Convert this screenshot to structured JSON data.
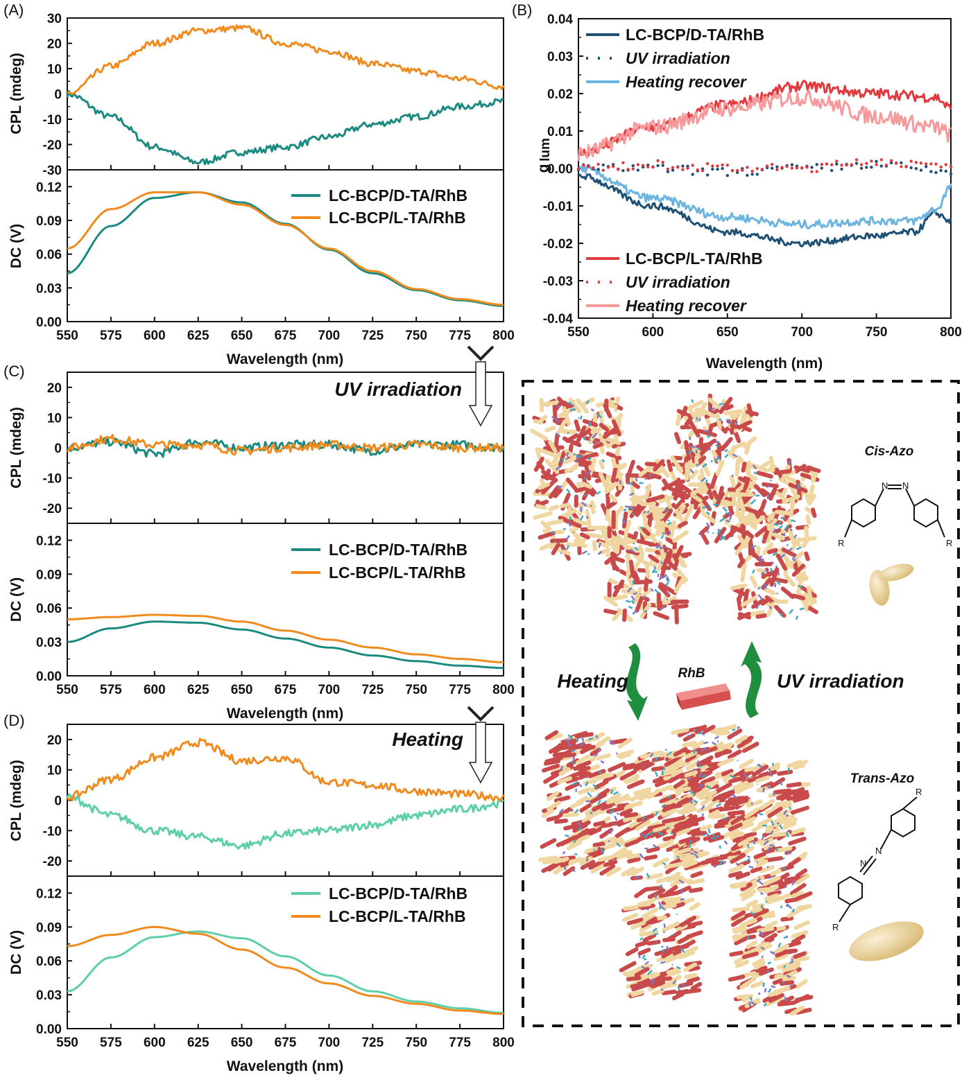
{
  "panel_labels": [
    "(A)",
    "(B)",
    "(C)",
    "(D)"
  ],
  "colors": {
    "d_ta": "#1a8a80",
    "l_ta": "#f08a1c",
    "d_ta_heat": "#5ccfa8",
    "b_dark_blue": "#1e4f75",
    "b_light_blue": "#6cb4e0",
    "b_red": "#e03a3e",
    "b_pink": "#f7999a",
    "azo_bead": "#f0d6a0",
    "rhb_brick": "#d65050"
  },
  "legend": {
    "d": "LC-BCP/D-TA/RhB",
    "l": "LC-BCP/L-TA/RhB"
  },
  "legend_b": {
    "d_main": "LC-BCP/D-TA/RhB",
    "d_uv": "UV irradiation",
    "d_heat": "Heating recover",
    "l_main": "LC-BCP/L-TA/RhB",
    "l_uv": "UV irradiation",
    "l_heat": "Heating recover"
  },
  "labels": {
    "cpl_y": "CPL (mdeg)",
    "dc_y": "DC (V)",
    "x": "Wavelength (nm)",
    "glum_y": "g",
    "glum_sub": "lum",
    "uv_c": "UV irradiation",
    "heat_d": "Heating"
  },
  "schematic": {
    "cis": "Cis-Azo",
    "trans": "Trans-Azo",
    "rhb": "RhB",
    "heating": "Heating",
    "uv": "UV irradiation",
    "atom_n": "N",
    "atom_r": "R"
  },
  "chart_data": [
    {
      "panel": "(A) CPL",
      "type": "line",
      "ylabel": "CPL (mdeg)",
      "xlim": [
        550,
        800
      ],
      "ylim": [
        -30,
        30
      ],
      "yticks": [
        30,
        20,
        10,
        0,
        -10,
        -20,
        -30
      ],
      "series": [
        {
          "name": "LC-BCP/D-TA/RhB",
          "x": [
            550,
            575,
            600,
            625,
            650,
            675,
            700,
            725,
            750,
            775,
            800
          ],
          "y": [
            0,
            -9,
            -21,
            -27,
            -23,
            -21,
            -17,
            -12,
            -9,
            -5,
            -3
          ]
        },
        {
          "name": "LC-BCP/L-TA/RhB",
          "x": [
            550,
            575,
            600,
            625,
            650,
            675,
            700,
            725,
            750,
            775,
            800
          ],
          "y": [
            0,
            11,
            20,
            25,
            26,
            20,
            17,
            12,
            9,
            6,
            3
          ]
        }
      ]
    },
    {
      "panel": "(A) DC",
      "type": "line",
      "ylabel": "DC (V)",
      "xlabel": "Wavelength (nm)",
      "xlim": [
        550,
        800
      ],
      "ylim": [
        0,
        0.135
      ],
      "xticks": [
        550,
        575,
        600,
        625,
        650,
        675,
        700,
        725,
        750,
        775,
        800
      ],
      "yticks": [
        "0.00",
        "0.03",
        "0.06",
        "0.09",
        "0.12"
      ],
      "series": [
        {
          "name": "LC-BCP/D-TA/RhB",
          "x": [
            550,
            575,
            600,
            625,
            650,
            675,
            700,
            725,
            750,
            775,
            800
          ],
          "y": [
            0.043,
            0.085,
            0.11,
            0.115,
            0.106,
            0.087,
            0.064,
            0.043,
            0.028,
            0.019,
            0.014
          ]
        },
        {
          "name": "LC-BCP/L-TA/RhB",
          "x": [
            550,
            575,
            600,
            625,
            650,
            675,
            700,
            725,
            750,
            775,
            800
          ],
          "y": [
            0.065,
            0.1,
            0.115,
            0.115,
            0.104,
            0.086,
            0.065,
            0.045,
            0.029,
            0.02,
            0.015
          ]
        }
      ]
    },
    {
      "panel": "(B)",
      "type": "line",
      "ylabel": "g lum",
      "xlabel": "Wavelength (nm)",
      "xlim": [
        550,
        800
      ],
      "ylim": [
        -0.04,
        0.04
      ],
      "xticks": [
        550,
        600,
        650,
        700,
        750,
        800
      ],
      "yticks": [
        "0.04",
        "0.03",
        "0.02",
        "0.01",
        "0.00",
        "-0.01",
        "-0.02",
        "-0.03",
        "-0.04"
      ],
      "series": [
        {
          "name": "LC-BCP/D-TA/RhB",
          "x": [
            550,
            600,
            650,
            700,
            750,
            775,
            790,
            800
          ],
          "y": [
            -0.002,
            -0.01,
            -0.017,
            -0.02,
            -0.018,
            -0.017,
            -0.012,
            -0.014
          ]
        },
        {
          "name": "UV irradiation",
          "x": [
            550,
            600,
            650,
            700,
            750,
            800
          ],
          "y": [
            0,
            0,
            -0.001,
            0,
            0.001,
            -0.001
          ]
        },
        {
          "name": "Heating recover",
          "x": [
            550,
            600,
            650,
            700,
            750,
            775,
            790,
            800
          ],
          "y": [
            0,
            -0.008,
            -0.013,
            -0.015,
            -0.014,
            -0.014,
            -0.011,
            -0.005
          ]
        },
        {
          "name": "LC-BCP/L-TA/RhB",
          "x": [
            550,
            600,
            650,
            700,
            750,
            790,
            800
          ],
          "y": [
            0.004,
            0.011,
            0.017,
            0.022,
            0.02,
            0.019,
            0.016
          ]
        },
        {
          "name": "UV irradiation",
          "x": [
            550,
            600,
            650,
            700,
            750,
            800
          ],
          "y": [
            0,
            0.001,
            0,
            0,
            0.002,
            0
          ]
        },
        {
          "name": "Heating recover",
          "x": [
            550,
            600,
            650,
            700,
            750,
            790,
            800
          ],
          "y": [
            0.004,
            0.011,
            0.016,
            0.019,
            0.014,
            0.011,
            0.009
          ]
        }
      ]
    },
    {
      "panel": "(C) CPL",
      "type": "line",
      "ylabel": "CPL (mdeg)",
      "xlim": [
        550,
        800
      ],
      "ylim": [
        -25,
        25
      ],
      "yticks": [
        20,
        10,
        0,
        -10,
        -20
      ],
      "series": [
        {
          "name": "LC-BCP/D-TA/RhB",
          "x": [
            550,
            575,
            600,
            625,
            650,
            675,
            700,
            725,
            750,
            775,
            800
          ],
          "y": [
            0,
            2,
            -2,
            2,
            0,
            1,
            1,
            -1,
            1,
            1,
            0
          ]
        },
        {
          "name": "LC-BCP/L-TA/RhB",
          "x": [
            550,
            575,
            600,
            625,
            650,
            675,
            700,
            725,
            750,
            775,
            800
          ],
          "y": [
            0,
            3,
            1,
            1,
            -1,
            0,
            1,
            0,
            1,
            0,
            0
          ]
        }
      ]
    },
    {
      "panel": "(C) DC",
      "type": "line",
      "ylabel": "DC (V)",
      "xlabel": "Wavelength (nm)",
      "xlim": [
        550,
        800
      ],
      "ylim": [
        0,
        0.135
      ],
      "xticks": [
        550,
        575,
        600,
        625,
        650,
        675,
        700,
        725,
        750,
        775,
        800
      ],
      "yticks": [
        "0.00",
        "0.03",
        "0.06",
        "0.09",
        "0.12"
      ],
      "series": [
        {
          "name": "LC-BCP/D-TA/RhB",
          "x": [
            550,
            575,
            600,
            625,
            650,
            675,
            700,
            725,
            750,
            775,
            800
          ],
          "y": [
            0.03,
            0.042,
            0.048,
            0.047,
            0.041,
            0.033,
            0.025,
            0.018,
            0.013,
            0.009,
            0.007
          ]
        },
        {
          "name": "LC-BCP/L-TA/RhB",
          "x": [
            550,
            575,
            600,
            625,
            650,
            675,
            700,
            725,
            750,
            775,
            800
          ],
          "y": [
            0.05,
            0.052,
            0.054,
            0.053,
            0.048,
            0.04,
            0.032,
            0.025,
            0.019,
            0.015,
            0.012
          ]
        }
      ]
    },
    {
      "panel": "(D) CPL",
      "type": "line",
      "ylabel": "CPL (mdeg)",
      "xlim": [
        550,
        800
      ],
      "ylim": [
        -25,
        25
      ],
      "yticks": [
        20,
        10,
        0,
        -10,
        -20
      ],
      "series": [
        {
          "name": "LC-BCP/D-TA/RhB",
          "x": [
            550,
            575,
            600,
            625,
            650,
            675,
            700,
            725,
            750,
            775,
            800
          ],
          "y": [
            1,
            -5,
            -10,
            -12,
            -15,
            -11,
            -10,
            -8,
            -5,
            -3,
            -1
          ]
        },
        {
          "name": "LC-BCP/L-TA/RhB",
          "x": [
            550,
            575,
            600,
            625,
            650,
            675,
            700,
            725,
            750,
            775,
            800
          ],
          "y": [
            1,
            7,
            14,
            19,
            13,
            14,
            6,
            5,
            3,
            2,
            1
          ]
        }
      ]
    },
    {
      "panel": "(D) DC",
      "type": "line",
      "ylabel": "DC (V)",
      "xlabel": "Wavelength (nm)",
      "xlim": [
        550,
        800
      ],
      "ylim": [
        0,
        0.135
      ],
      "xticks": [
        550,
        575,
        600,
        625,
        650,
        675,
        700,
        725,
        750,
        775,
        800
      ],
      "yticks": [
        "0.00",
        "0.03",
        "0.06",
        "0.09",
        "0.12"
      ],
      "series": [
        {
          "name": "LC-BCP/D-TA/RhB",
          "x": [
            550,
            575,
            600,
            625,
            650,
            675,
            700,
            725,
            750,
            775,
            800
          ],
          "y": [
            0.033,
            0.063,
            0.081,
            0.086,
            0.08,
            0.064,
            0.047,
            0.033,
            0.024,
            0.018,
            0.014
          ]
        },
        {
          "name": "LC-BCP/L-TA/RhB",
          "x": [
            550,
            575,
            600,
            625,
            650,
            675,
            700,
            725,
            750,
            775,
            800
          ],
          "y": [
            0.073,
            0.083,
            0.09,
            0.084,
            0.07,
            0.054,
            0.04,
            0.029,
            0.022,
            0.016,
            0.013
          ]
        }
      ]
    }
  ]
}
